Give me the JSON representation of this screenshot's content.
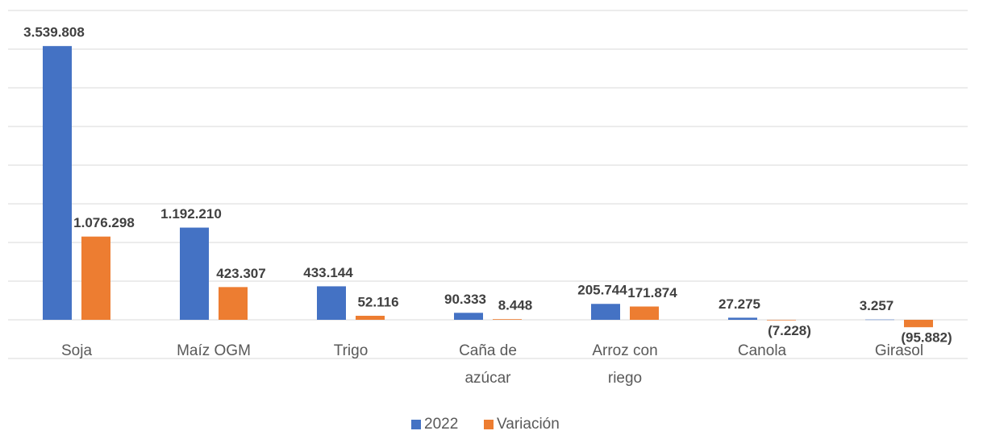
{
  "chart_data": {
    "type": "bar",
    "categories": [
      "Soja",
      "Maíz OGM",
      "Trigo",
      "Caña de azúcar",
      "Arroz con riego",
      "Canola",
      "Girasol"
    ],
    "series": [
      {
        "name": "2022",
        "color": "#4472c4",
        "values": [
          3539808,
          1192210,
          433144,
          90333,
          205744,
          27275,
          3257
        ],
        "value_labels": [
          "3.539.808",
          "1.192.210",
          "433.144",
          "90.333",
          "205.744",
          "27.275",
          "3.257"
        ]
      },
      {
        "name": "Variación",
        "color": "#ed7d31",
        "values": [
          1076298,
          423307,
          52116,
          8448,
          171874,
          -7228,
          -95882
        ],
        "value_labels": [
          "1.076.298",
          "423.307",
          "52.116",
          "8.448",
          "171.874",
          "(7.228)",
          "(95.882)"
        ]
      }
    ],
    "ylim": [
      -500000,
      4000000
    ],
    "yticks": [
      -500000,
      0,
      500000,
      1000000,
      1500000,
      2000000,
      2500000,
      3000000,
      3500000,
      4000000
    ],
    "grid": true,
    "legend": "bottom"
  }
}
